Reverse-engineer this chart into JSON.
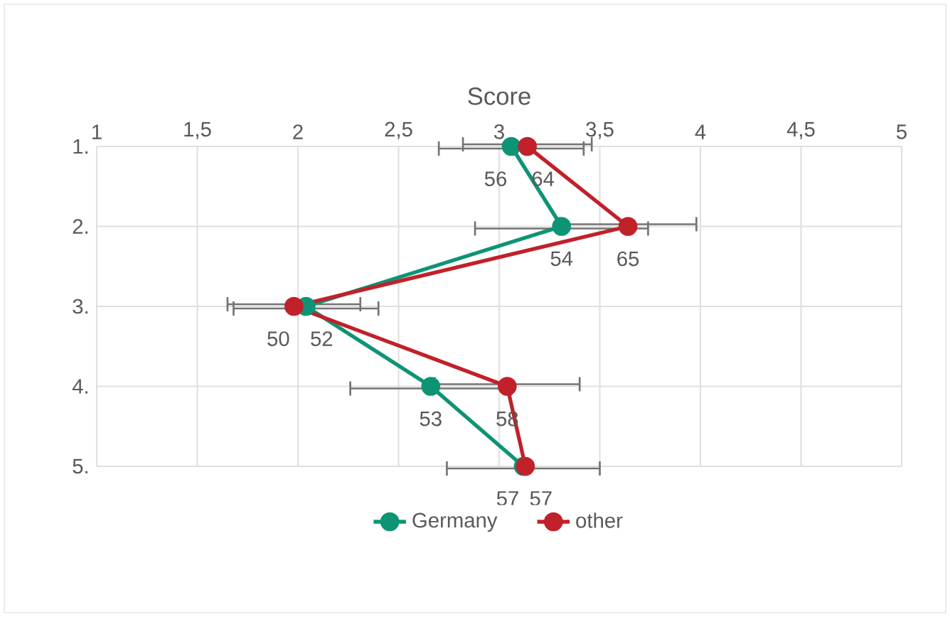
{
  "chart_data": {
    "type": "line",
    "xlabel": "Score",
    "orientation": "horizontal",
    "categories": [
      "1.",
      "2.",
      "3.",
      "4.",
      "5."
    ],
    "xlim": [
      1,
      5
    ],
    "xticks": [
      1,
      {
        "value": 1.5,
        "label": "1,5"
      },
      2,
      {
        "value": 2.5,
        "label": "2,5"
      },
      3,
      {
        "value": 3.5,
        "label": "3,5"
      },
      4,
      {
        "value": 4.5,
        "label": "4,5"
      },
      5
    ],
    "grid": true,
    "legend": "bottom",
    "marker": "circle",
    "line_style": "solid",
    "series": [
      {
        "name": "Germany",
        "color": "#0e9474",
        "values": [
          3.06,
          3.31,
          2.04,
          2.66,
          3.12
        ],
        "errors": [
          0.36,
          0.43,
          0.36,
          0.4,
          0.38
        ]
      },
      {
        "name": "other",
        "color": "#c0212a",
        "values": [
          3.14,
          3.64,
          1.98,
          3.04,
          3.13
        ],
        "errors": [
          0.32,
          0.34,
          0.33,
          0.36,
          null
        ]
      }
    ],
    "annotations": [
      {
        "text": "56",
        "x": 3.06,
        "y": "1."
      },
      {
        "text": "54",
        "x": 3.31,
        "y": "2."
      },
      {
        "text": "52",
        "x": 2.04,
        "y": "3."
      },
      {
        "text": "53",
        "x": 2.66,
        "y": "4."
      },
      {
        "text": "57",
        "x": 3.12,
        "y": "5."
      },
      {
        "text": "64",
        "x": 3.14,
        "y": "1."
      },
      {
        "text": "65",
        "x": 3.64,
        "y": "2."
      },
      {
        "text": "50",
        "x": 1.98,
        "y": "3."
      },
      {
        "text": "58",
        "x": 3.04,
        "y": "4."
      },
      {
        "text": "57",
        "x": 3.13,
        "y": "5."
      }
    ]
  }
}
